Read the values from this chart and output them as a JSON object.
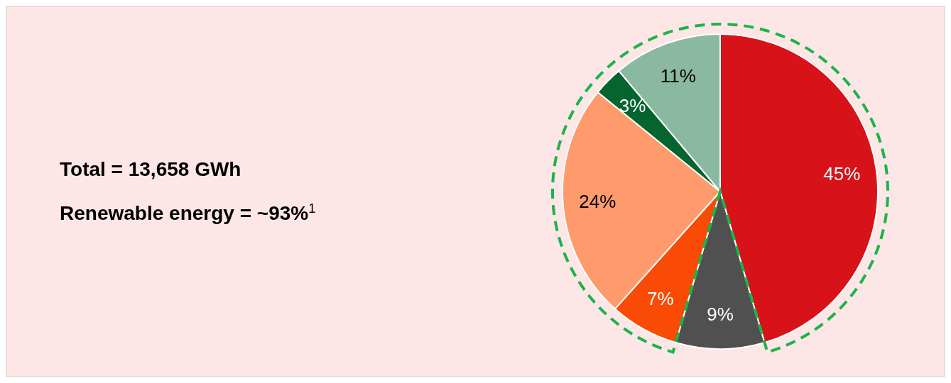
{
  "chart_data": {
    "type": "pie",
    "categories": [
      null,
      null,
      null,
      null,
      null,
      null
    ],
    "values": [
      45,
      9,
      7,
      24,
      3,
      11
    ],
    "colors": [
      "#d71219",
      "#505050",
      "#f94b06",
      "#fe9a6b",
      "#06642f",
      "#8bb8a0"
    ],
    "value_labels": [
      "45%",
      "9%",
      "7%",
      "24%",
      "3%",
      "11%"
    ],
    "annotations": [
      "Total = 13,658 GWh",
      "Renewable energy = ~93%$^{1}$"
    ]
  }
}
